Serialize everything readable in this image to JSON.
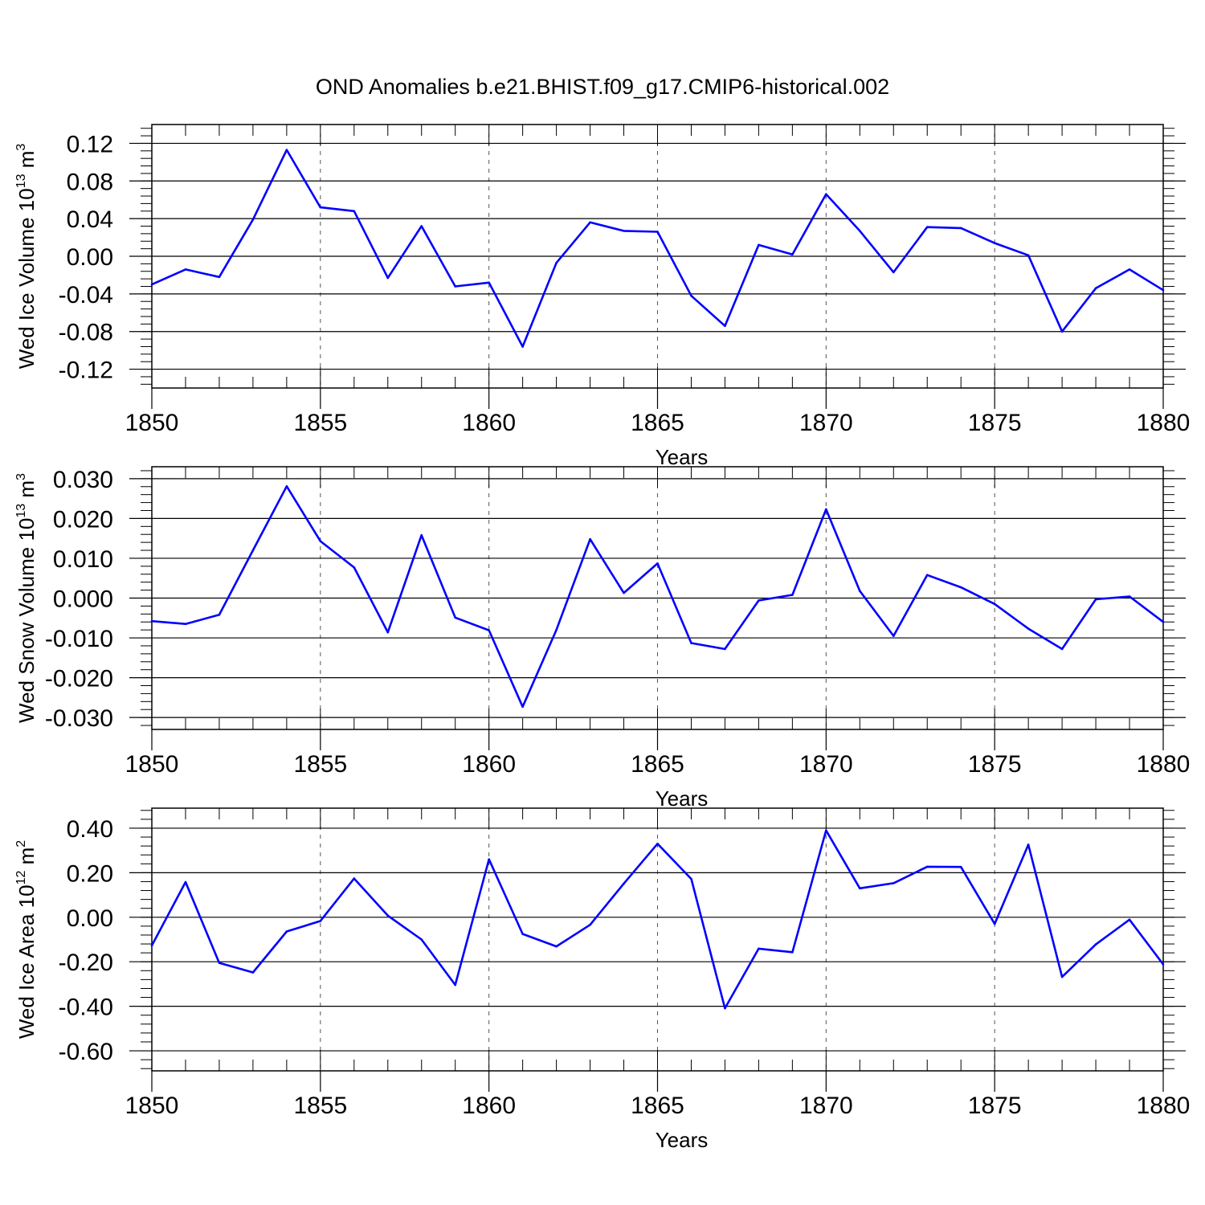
{
  "title": "OND Anomalies b.e21.BHIST.f09_g17.CMIP6-historical.002",
  "line_color": "#0000ff",
  "chart_data": [
    {
      "type": "line",
      "ylabel": "Wed Ice Volume 10",
      "ylabel_exp": "13",
      "ylabel_unit": " m",
      "ylabel_unit_exp": "3",
      "xlabel": "Years",
      "xlim": [
        1850,
        1880
      ],
      "ylim": [
        -0.14,
        0.14
      ],
      "xticks": [
        1850,
        1855,
        1860,
        1865,
        1870,
        1875,
        1880
      ],
      "yticks": [
        -0.12,
        -0.08,
        -0.04,
        0.0,
        0.04,
        0.08,
        0.12
      ],
      "ytick_labels": [
        "-0.12",
        "-0.08",
        "-0.04",
        "0.00",
        "0.04",
        "0.08",
        "0.12"
      ],
      "grid": "vertical dashed at major x ticks",
      "x": [
        1850,
        1851,
        1852,
        1853,
        1854,
        1855,
        1856,
        1857,
        1858,
        1859,
        1860,
        1861,
        1862,
        1863,
        1864,
        1865,
        1866,
        1867,
        1868,
        1869,
        1870,
        1871,
        1872,
        1873,
        1874,
        1875,
        1876,
        1877,
        1878,
        1879,
        1880
      ],
      "y": [
        -0.03,
        -0.014,
        -0.022,
        0.039,
        0.113,
        0.052,
        0.048,
        -0.023,
        0.032,
        -0.032,
        -0.028,
        -0.096,
        -0.007,
        0.036,
        0.027,
        0.026,
        -0.042,
        -0.074,
        0.012,
        0.002,
        0.066,
        0.027,
        -0.017,
        0.031,
        0.03,
        0.014,
        0.001,
        -0.08,
        -0.034,
        -0.014,
        -0.036
      ]
    },
    {
      "type": "line",
      "ylabel": "Wed Snow Volume 10",
      "ylabel_exp": "13",
      "ylabel_unit": " m",
      "ylabel_unit_exp": "3",
      "xlabel": "Years",
      "xlim": [
        1850,
        1880
      ],
      "ylim": [
        -0.033,
        0.033
      ],
      "xticks": [
        1850,
        1855,
        1860,
        1865,
        1870,
        1875,
        1880
      ],
      "yticks": [
        -0.03,
        -0.02,
        -0.01,
        0.0,
        0.01,
        0.02,
        0.03
      ],
      "ytick_labels": [
        "-0.030",
        "-0.020",
        "-0.010",
        "0.000",
        "0.010",
        "0.020",
        "0.030"
      ],
      "grid": "vertical dashed at major x ticks",
      "x": [
        1850,
        1851,
        1852,
        1853,
        1854,
        1855,
        1856,
        1857,
        1858,
        1859,
        1860,
        1861,
        1862,
        1863,
        1864,
        1865,
        1866,
        1867,
        1868,
        1869,
        1870,
        1871,
        1872,
        1873,
        1874,
        1875,
        1876,
        1877,
        1878,
        1879,
        1880
      ],
      "y": [
        -0.0058,
        -0.0065,
        -0.0042,
        0.012,
        0.0281,
        0.0143,
        0.0077,
        -0.0086,
        0.0158,
        -0.0049,
        -0.0081,
        -0.0273,
        -0.008,
        0.0148,
        0.0013,
        0.0087,
        -0.0113,
        -0.0128,
        -0.0006,
        0.0008,
        0.0223,
        0.0018,
        -0.0095,
        0.0058,
        0.0027,
        -0.0015,
        -0.0077,
        -0.0128,
        -0.0003,
        0.0004,
        -0.006
      ]
    },
    {
      "type": "line",
      "ylabel": "Wed Ice Area 10",
      "ylabel_exp": "12",
      "ylabel_unit": " m",
      "ylabel_unit_exp": "2",
      "xlabel": "Years",
      "xlim": [
        1850,
        1880
      ],
      "ylim": [
        -0.69,
        0.49
      ],
      "xticks": [
        1850,
        1855,
        1860,
        1865,
        1870,
        1875,
        1880
      ],
      "yticks": [
        -0.6,
        -0.4,
        -0.2,
        0.0,
        0.2,
        0.4
      ],
      "ytick_labels": [
        "-0.60",
        "-0.40",
        "-0.20",
        "0.00",
        "0.20",
        "0.40"
      ],
      "grid": "vertical dashed at major x ticks",
      "x": [
        1850,
        1851,
        1852,
        1853,
        1854,
        1855,
        1856,
        1857,
        1858,
        1859,
        1860,
        1861,
        1862,
        1863,
        1864,
        1865,
        1866,
        1867,
        1868,
        1869,
        1870,
        1871,
        1872,
        1873,
        1874,
        1875,
        1876,
        1877,
        1878,
        1879,
        1880
      ],
      "y": [
        -0.127,
        0.158,
        -0.205,
        -0.248,
        -0.064,
        -0.017,
        0.174,
        0.007,
        -0.1,
        -0.304,
        0.26,
        -0.075,
        -0.131,
        -0.034,
        0.151,
        0.33,
        0.172,
        -0.409,
        -0.141,
        -0.157,
        0.39,
        0.13,
        0.153,
        0.227,
        0.226,
        -0.03,
        0.326,
        -0.268,
        -0.122,
        -0.011,
        -0.212
      ]
    }
  ]
}
